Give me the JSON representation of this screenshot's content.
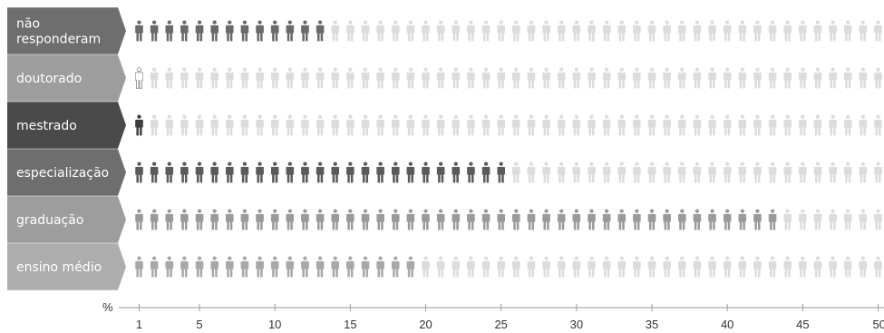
{
  "chart_data": {
    "type": "bar",
    "subtype": "pictogram",
    "categories": [
      {
        "label": [
          "não",
          "responderam"
        ],
        "value": 13,
        "tag_color": "#6e6e6e",
        "fill_color": "#6a6a6a",
        "empty_color": "#dcdcdc"
      },
      {
        "label": [
          "doutorado"
        ],
        "value": 1,
        "tag_color": "#9d9d9d",
        "fill_color": "#ffffff",
        "empty_color": "#dcdcdc",
        "fill_style": "outline"
      },
      {
        "label": [
          "mestrado"
        ],
        "value": 1,
        "tag_color": "#4a4a4a",
        "fill_color": "#3e3e3e",
        "empty_color": "#dcdcdc"
      },
      {
        "label": [
          "especialização"
        ],
        "value": 25,
        "tag_color": "#6e6e6e",
        "fill_color": "#5a5a5a",
        "empty_color": "#dcdcdc"
      },
      {
        "label": [
          "graduação"
        ],
        "value": 43,
        "tag_color": "#9d9d9d",
        "fill_color": "#9a9a9a",
        "empty_color": "#dcdcdc"
      },
      {
        "label": [
          "ensino médio"
        ],
        "value": 19,
        "tag_color": "#adadad",
        "fill_color": "#a8a8a8",
        "empty_color": "#dcdcdc"
      }
    ],
    "max_units": 50,
    "unit": "%",
    "xticks": [
      1,
      5,
      10,
      15,
      20,
      25,
      30,
      35,
      40,
      45,
      50
    ],
    "xlabel": "%",
    "grid": false,
    "legend": "none"
  }
}
